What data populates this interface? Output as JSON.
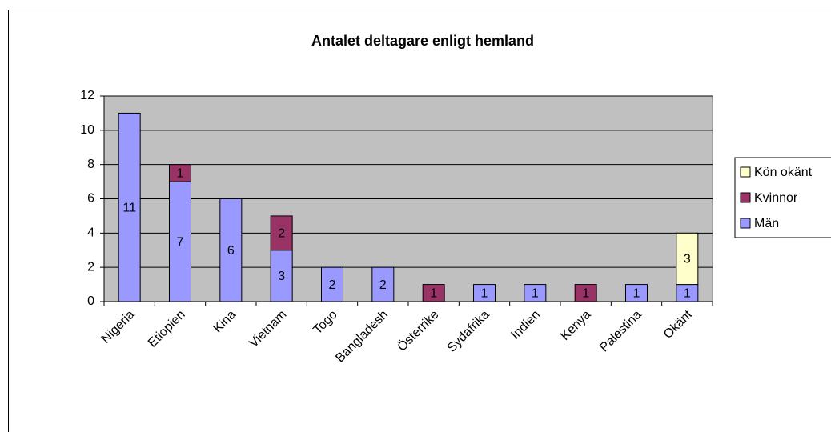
{
  "chart_data": {
    "type": "stacked_bar",
    "title": "Antalet deltagare enligt hemland",
    "categories": [
      "Nigeria",
      "Etiopien",
      "Kina",
      "Vietnam",
      "Togo",
      "Bangladesh",
      "Österrike",
      "Sydafrika",
      "Indien",
      "Kenya",
      "Palestina",
      "Okänt"
    ],
    "series": [
      {
        "name": "Män",
        "color": "#9999ff",
        "values": [
          11,
          7,
          6,
          3,
          2,
          2,
          null,
          1,
          1,
          null,
          1,
          1
        ]
      },
      {
        "name": "Kvinnor",
        "color": "#993366",
        "values": [
          null,
          1,
          null,
          2,
          null,
          null,
          1,
          null,
          null,
          1,
          null,
          null
        ]
      },
      {
        "name": "Kön okänt",
        "color": "#ffffcc",
        "values": [
          null,
          null,
          null,
          null,
          null,
          null,
          null,
          null,
          null,
          null,
          null,
          3
        ]
      }
    ],
    "ylim": [
      0,
      12
    ],
    "yticks": [
      0,
      2,
      4,
      6,
      8,
      10,
      12
    ],
    "grid": true,
    "legend": "right"
  }
}
